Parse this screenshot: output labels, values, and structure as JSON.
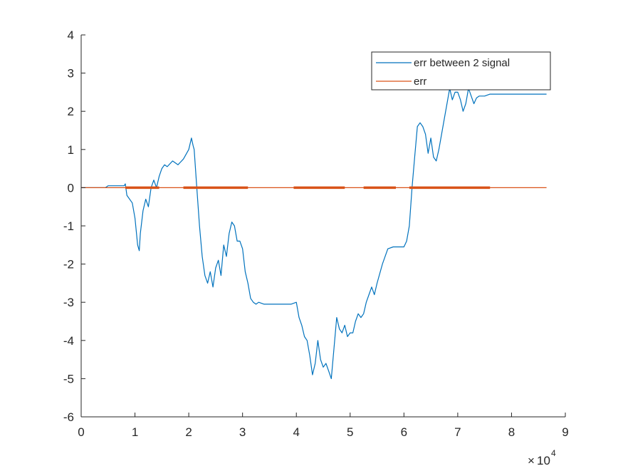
{
  "chart_data": {
    "type": "line",
    "title": "",
    "xlabel": "",
    "ylabel": "",
    "x_exponent_label": "10",
    "x_exponent_power": "4",
    "x_exponent_multiplier": "×",
    "xlim": [
      0,
      9
    ],
    "ylim": [
      -6,
      4
    ],
    "xticks": [
      0,
      1,
      2,
      3,
      4,
      5,
      6,
      7,
      8,
      9
    ],
    "xtick_labels": [
      "0",
      "1",
      "2",
      "3",
      "4",
      "5",
      "6",
      "7",
      "8",
      "9"
    ],
    "yticks": [
      4,
      3,
      2,
      1,
      0,
      -1,
      -2,
      -3,
      -4,
      -5,
      -6
    ],
    "ytick_labels": [
      "4",
      "3",
      "2",
      "1",
      "0",
      "-1",
      "-2",
      "-3",
      "-4",
      "-5",
      "-6"
    ],
    "grid": false,
    "legend": {
      "placement": "top-right",
      "entries": [
        "err between 2 signal",
        "err"
      ]
    },
    "series": [
      {
        "name": "err between 2 signal",
        "color": "#0072BD",
        "x": [
          0,
          0.45,
          0.5,
          0.8,
          0.82,
          0.85,
          0.95,
          1.0,
          1.05,
          1.08,
          1.1,
          1.15,
          1.2,
          1.25,
          1.3,
          1.35,
          1.4,
          1.45,
          1.5,
          1.55,
          1.6,
          1.7,
          1.8,
          1.9,
          2.0,
          2.05,
          2.08,
          2.1,
          2.15,
          2.2,
          2.25,
          2.3,
          2.35,
          2.4,
          2.45,
          2.5,
          2.55,
          2.6,
          2.65,
          2.7,
          2.75,
          2.8,
          2.85,
          2.9,
          2.95,
          3.0,
          3.05,
          3.1,
          3.15,
          3.2,
          3.25,
          3.3,
          3.4,
          3.5,
          3.6,
          3.7,
          3.8,
          3.9,
          4.0,
          4.05,
          4.1,
          4.15,
          4.2,
          4.25,
          4.3,
          4.35,
          4.4,
          4.45,
          4.5,
          4.55,
          4.6,
          4.65,
          4.7,
          4.75,
          4.8,
          4.85,
          4.9,
          4.95,
          5.0,
          5.05,
          5.1,
          5.15,
          5.2,
          5.25,
          5.3,
          5.35,
          5.4,
          5.45,
          5.5,
          5.6,
          5.7,
          5.8,
          5.9,
          6.0,
          6.05,
          6.1,
          6.15,
          6.2,
          6.25,
          6.3,
          6.35,
          6.4,
          6.45,
          6.5,
          6.55,
          6.6,
          6.65,
          6.7,
          6.75,
          6.8,
          6.85,
          6.9,
          6.95,
          7.0,
          7.05,
          7.1,
          7.15,
          7.2,
          7.25,
          7.3,
          7.35,
          7.4,
          7.5,
          7.6,
          7.8,
          8.0,
          8.2,
          8.4,
          8.65
        ],
        "y": [
          0.0,
          0.0,
          0.05,
          0.05,
          0.1,
          -0.2,
          -0.4,
          -0.8,
          -1.5,
          -1.65,
          -1.2,
          -0.6,
          -0.3,
          -0.5,
          0.0,
          0.2,
          0.0,
          0.3,
          0.5,
          0.6,
          0.55,
          0.7,
          0.6,
          0.75,
          1.0,
          1.3,
          1.1,
          1.0,
          0.0,
          -1.0,
          -1.8,
          -2.3,
          -2.5,
          -2.2,
          -2.6,
          -2.1,
          -1.9,
          -2.3,
          -1.5,
          -1.8,
          -1.2,
          -0.9,
          -1.0,
          -1.4,
          -1.4,
          -1.6,
          -2.2,
          -2.5,
          -2.9,
          -3.0,
          -3.05,
          -3.0,
          -3.05,
          -3.05,
          -3.05,
          -3.05,
          -3.05,
          -3.05,
          -3.0,
          -3.4,
          -3.6,
          -3.9,
          -4.0,
          -4.4,
          -4.9,
          -4.6,
          -4.0,
          -4.5,
          -4.7,
          -4.6,
          -4.8,
          -5.0,
          -4.2,
          -3.4,
          -3.7,
          -3.8,
          -3.6,
          -3.9,
          -3.8,
          -3.8,
          -3.5,
          -3.3,
          -3.4,
          -3.3,
          -3.0,
          -2.8,
          -2.6,
          -2.8,
          -2.5,
          -2.0,
          -1.6,
          -1.55,
          -1.55,
          -1.55,
          -1.4,
          -1.0,
          0.0,
          0.8,
          1.6,
          1.7,
          1.6,
          1.4,
          0.9,
          1.3,
          0.8,
          0.7,
          1.0,
          1.4,
          1.8,
          2.2,
          2.6,
          2.3,
          2.5,
          2.5,
          2.3,
          2.0,
          2.2,
          2.6,
          2.4,
          2.2,
          2.35,
          2.4,
          2.4,
          2.45,
          2.45,
          2.45,
          2.45,
          2.45,
          2.45
        ]
      },
      {
        "name": "err",
        "color": "#D95319",
        "x": [
          0,
          0.8,
          1.5,
          2.0,
          3.0,
          4.0,
          4.9,
          5.3,
          5.8,
          6.2,
          7.0,
          7.6,
          8.65
        ],
        "y": [
          0,
          0,
          0,
          0,
          0,
          0,
          0,
          0,
          0,
          0,
          0,
          0,
          0
        ],
        "thick_segments": [
          [
            0.82,
            1.45
          ],
          [
            1.9,
            3.1
          ],
          [
            3.95,
            4.9
          ],
          [
            5.25,
            5.85
          ],
          [
            6.1,
            7.6
          ]
        ]
      }
    ]
  }
}
